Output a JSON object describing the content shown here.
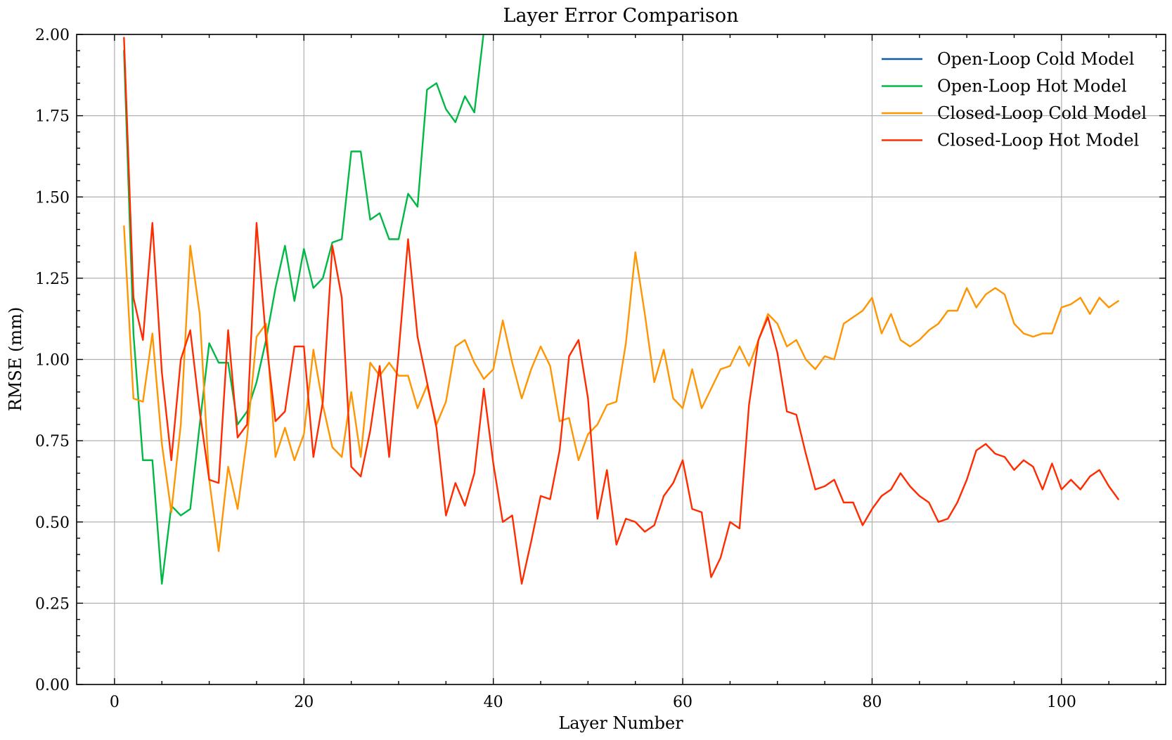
{
  "chart_data": {
    "type": "line",
    "title": "Layer Error Comparison",
    "xlabel": "Layer Number",
    "ylabel": "RMSE (mm)",
    "xlim": [
      -4,
      111
    ],
    "ylim": [
      0,
      2.0
    ],
    "xticks": [
      0,
      20,
      40,
      60,
      80,
      100
    ],
    "xtick_labels": [
      "0",
      "20",
      "40",
      "60",
      "80",
      "100"
    ],
    "yticks": [
      0,
      0.25,
      0.5,
      0.75,
      1.0,
      1.25,
      1.5,
      1.75,
      2.0
    ],
    "ytick_labels": [
      "0.00",
      "0.25",
      "0.50",
      "0.75",
      "1.00",
      "1.25",
      "1.50",
      "1.75",
      "2.00"
    ],
    "grid": true,
    "legend_position": "top-right",
    "series": [
      {
        "name": "Open-Loop Cold Model",
        "color": "#0c5da5",
        "x_start": 1,
        "values": []
      },
      {
        "name": "Open-Loop Hot Model",
        "color": "#00b945",
        "x_start": 1,
        "values": [
          1.95,
          1.08,
          0.69,
          0.69,
          0.31,
          0.55,
          0.52,
          0.54,
          0.8,
          1.05,
          0.99,
          0.99,
          0.8,
          0.84,
          0.93,
          1.06,
          1.22,
          1.35,
          1.18,
          1.34,
          1.22,
          1.25,
          1.36,
          1.37,
          1.64,
          1.64,
          1.43,
          1.45,
          1.37,
          1.37,
          1.51,
          1.47,
          1.83,
          1.85,
          1.77,
          1.73,
          1.81,
          1.76,
          2.01,
          2.2
        ]
      },
      {
        "name": "Closed-Loop Cold Model",
        "color": "#ff9500",
        "x_start": 1,
        "values": [
          1.41,
          0.88,
          0.87,
          1.08,
          0.74,
          0.53,
          0.8,
          1.35,
          1.14,
          0.63,
          0.41,
          0.67,
          0.54,
          0.76,
          1.07,
          1.11,
          0.7,
          0.79,
          0.69,
          0.77,
          1.03,
          0.86,
          0.73,
          0.7,
          0.9,
          0.7,
          0.99,
          0.95,
          0.99,
          0.95,
          0.95,
          0.85,
          0.92,
          0.8,
          0.87,
          1.04,
          1.06,
          0.99,
          0.94,
          0.97,
          1.12,
          0.99,
          0.88,
          0.97,
          1.04,
          0.98,
          0.81,
          0.82,
          0.69,
          0.77,
          0.8,
          0.86,
          0.87,
          1.05,
          1.33,
          1.14,
          0.93,
          1.03,
          0.88,
          0.85,
          0.97,
          0.85,
          0.91,
          0.97,
          0.98,
          1.04,
          0.98,
          1.06,
          1.14,
          1.11,
          1.04,
          1.06,
          1.0,
          0.97,
          1.01,
          1.0,
          1.11,
          1.13,
          1.15,
          1.19,
          1.08,
          1.14,
          1.06,
          1.04,
          1.06,
          1.09,
          1.11,
          1.15,
          1.15,
          1.22,
          1.16,
          1.2,
          1.22,
          1.2,
          1.11,
          1.08,
          1.07,
          1.08,
          1.08,
          1.16,
          1.17,
          1.19,
          1.14,
          1.19,
          1.16,
          1.18
        ]
      },
      {
        "name": "Closed-Loop Hot Model",
        "color": "#ff2c00",
        "x_start": 1,
        "values": [
          1.99,
          1.19,
          1.06,
          1.42,
          0.96,
          0.69,
          1.0,
          1.09,
          0.84,
          0.63,
          0.62,
          1.09,
          0.76,
          0.8,
          1.42,
          1.06,
          0.81,
          0.84,
          1.04,
          1.04,
          0.7,
          0.87,
          1.35,
          1.19,
          0.67,
          0.64,
          0.78,
          0.98,
          0.7,
          1.02,
          1.37,
          1.07,
          0.93,
          0.79,
          0.52,
          0.62,
          0.55,
          0.65,
          0.91,
          0.68,
          0.5,
          0.52,
          0.31,
          0.44,
          0.58,
          0.57,
          0.72,
          1.01,
          1.06,
          0.88,
          0.51,
          0.66,
          0.43,
          0.51,
          0.5,
          0.47,
          0.49,
          0.58,
          0.62,
          0.69,
          0.54,
          0.53,
          0.33,
          0.39,
          0.5,
          0.48,
          0.86,
          1.06,
          1.13,
          1.02,
          0.84,
          0.83,
          0.71,
          0.6,
          0.61,
          0.63,
          0.56,
          0.56,
          0.49,
          0.54,
          0.58,
          0.6,
          0.65,
          0.61,
          0.58,
          0.56,
          0.5,
          0.51,
          0.56,
          0.63,
          0.72,
          0.74,
          0.71,
          0.7,
          0.66,
          0.69,
          0.67,
          0.6,
          0.68,
          0.6,
          0.63,
          0.6,
          0.64,
          0.66,
          0.61,
          0.57
        ]
      }
    ]
  }
}
